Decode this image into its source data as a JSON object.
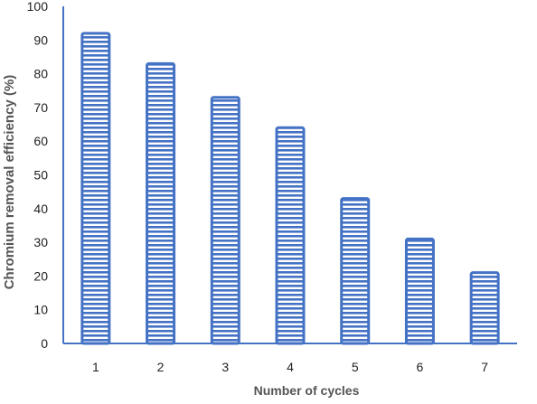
{
  "chart_data": {
    "type": "bar",
    "title": "",
    "xlabel": "Number of cycles",
    "ylabel": "Chromium removal efficiency (%)",
    "categories": [
      "1",
      "2",
      "3",
      "4",
      "5",
      "6",
      "7"
    ],
    "values": [
      92,
      83,
      73,
      64,
      43,
      31,
      21
    ],
    "ylim": [
      0,
      100
    ],
    "yticks": [
      "0",
      "10",
      "20",
      "30",
      "40",
      "50",
      "60",
      "70",
      "80",
      "90",
      "100"
    ],
    "grid": false,
    "legend": "none",
    "bar_color": "#4472c4",
    "bar_fill_pattern": "horizontal-stripes",
    "bar_fill_color": "#ffffff",
    "axis_color": "#4472c4"
  }
}
